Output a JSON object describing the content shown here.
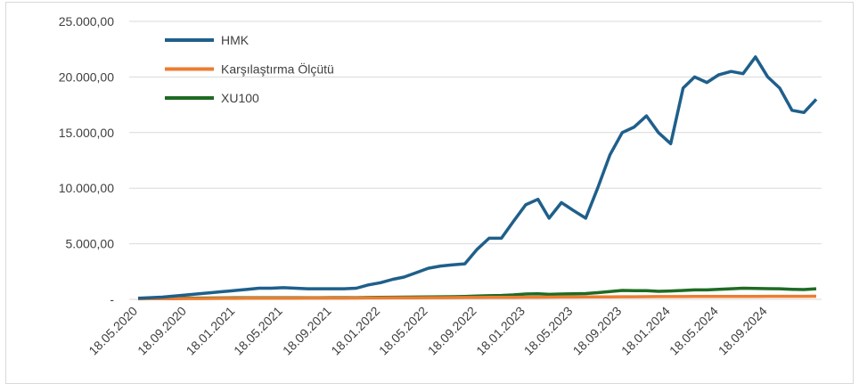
{
  "chart_data": {
    "type": "line",
    "x": [
      "18.05.2020",
      "18.06.2020",
      "18.07.2020",
      "18.08.2020",
      "18.09.2020",
      "18.10.2020",
      "18.11.2020",
      "18.12.2020",
      "18.01.2021",
      "18.02.2021",
      "18.03.2021",
      "18.04.2021",
      "18.05.2021",
      "18.06.2021",
      "18.07.2021",
      "18.08.2021",
      "18.09.2021",
      "18.10.2021",
      "18.11.2021",
      "18.12.2021",
      "18.01.2022",
      "18.02.2022",
      "18.03.2022",
      "18.04.2022",
      "18.05.2022",
      "18.06.2022",
      "18.07.2022",
      "18.08.2022",
      "18.09.2022",
      "18.10.2022",
      "18.11.2022",
      "18.12.2022",
      "18.01.2023",
      "18.02.2023",
      "18.03.2023",
      "18.04.2023",
      "18.05.2023",
      "18.06.2023",
      "18.07.2023",
      "18.08.2023",
      "18.09.2023",
      "18.10.2023",
      "18.11.2023",
      "18.12.2023",
      "18.01.2024",
      "18.02.2024",
      "18.03.2024",
      "18.04.2024",
      "18.05.2024",
      "18.06.2024",
      "18.07.2024",
      "18.08.2024",
      "18.09.2024",
      "18.10.2024",
      "18.11.2024",
      "18.12.2024",
      "18.01.2025"
    ],
    "series": [
      {
        "name": "HMK",
        "color": "#1f5f8b",
        "values": [
          100,
          150,
          200,
          300,
          400,
          500,
          600,
          700,
          800,
          900,
          1000,
          1000,
          1050,
          1000,
          950,
          950,
          950,
          950,
          1000,
          1300,
          1500,
          1800,
          2000,
          2400,
          2800,
          3000,
          3100,
          3200,
          4500,
          5500,
          5500,
          7000,
          8500,
          9000,
          7300,
          8700,
          8000,
          7300,
          10000,
          13000,
          15000,
          15500,
          16500,
          15000,
          14000,
          19000,
          20000,
          19500,
          20200,
          20500,
          20300,
          21800,
          20000,
          19000,
          17000,
          16800,
          18000
        ]
      },
      {
        "name": "Karşılaştırma Ölçütü",
        "color": "#ed7d31",
        "values": [
          50,
          55,
          60,
          65,
          70,
          75,
          80,
          85,
          90,
          95,
          100,
          100,
          105,
          105,
          110,
          110,
          115,
          115,
          120,
          125,
          130,
          135,
          140,
          145,
          150,
          155,
          160,
          165,
          170,
          175,
          180,
          185,
          190,
          195,
          200,
          205,
          210,
          215,
          220,
          225,
          230,
          235,
          240,
          245,
          250,
          250,
          255,
          255,
          260,
          260,
          265,
          265,
          270,
          270,
          270,
          275,
          280
        ]
      },
      {
        "name": "XU100",
        "color": "#1e6b23",
        "values": [
          100,
          100,
          110,
          110,
          115,
          115,
          120,
          130,
          140,
          140,
          140,
          140,
          140,
          140,
          145,
          145,
          150,
          150,
          155,
          165,
          180,
          190,
          200,
          210,
          220,
          230,
          240,
          260,
          300,
          330,
          350,
          400,
          480,
          500,
          450,
          480,
          500,
          520,
          600,
          700,
          800,
          780,
          780,
          720,
          750,
          800,
          850,
          850,
          900,
          950,
          1000,
          980,
          960,
          950,
          900,
          880,
          950
        ]
      }
    ],
    "xlim": [
      "18.05.2020",
      "18.01.2025"
    ],
    "xticks": [
      "18.05.2020",
      "18.09.2020",
      "18.01.2021",
      "18.05.2021",
      "18.09.2021",
      "18.01.2022",
      "18.05.2022",
      "18.09.2022",
      "18.01.2023",
      "18.05.2023",
      "18.09.2023",
      "18.01.2024",
      "18.05.2024",
      "18.09.2024"
    ],
    "ylim": [
      0,
      25000
    ],
    "yticks": [
      {
        "value": 0,
        "label": "-"
      },
      {
        "value": 5000,
        "label": "5.000,00"
      },
      {
        "value": 10000,
        "label": "10.000,00"
      },
      {
        "value": 15000,
        "label": "15.000,00"
      },
      {
        "value": 20000,
        "label": "20.000,00"
      },
      {
        "value": 25000,
        "label": "25.000,00"
      }
    ],
    "grid": true,
    "legend": "top-left"
  }
}
